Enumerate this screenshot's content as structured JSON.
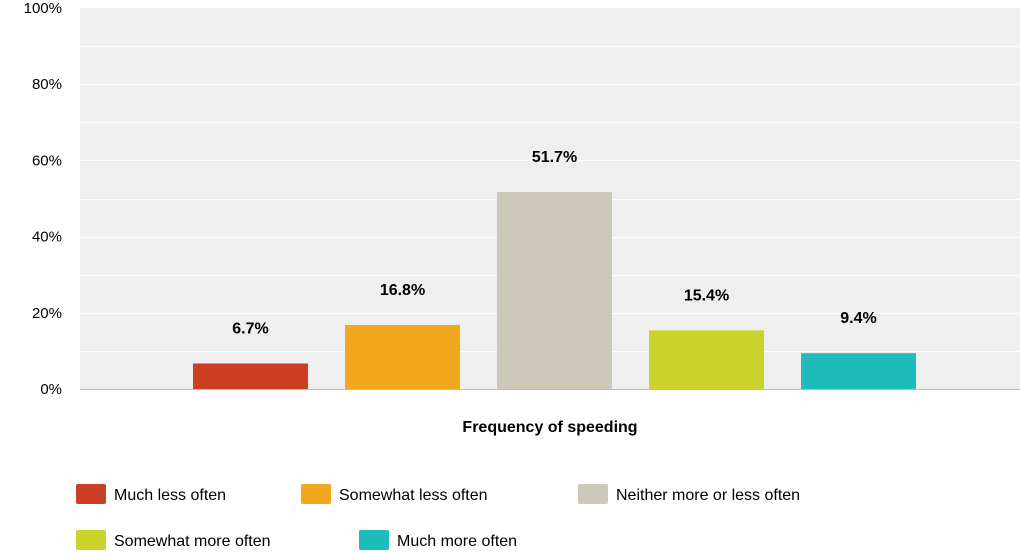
{
  "chart_data": {
    "type": "bar",
    "xlabel": "Frequency of speeding",
    "ylabel": "",
    "ylim": [
      0,
      100
    ],
    "yticks": [
      "0%",
      "20%",
      "40%",
      "60%",
      "80%",
      "100%"
    ],
    "grid": true,
    "legend_position": "bottom",
    "series": [
      {
        "name": "Much less often",
        "value": 6.7,
        "label": "6.7%",
        "color": "#cc3f23"
      },
      {
        "name": "Somewhat less often",
        "value": 16.8,
        "label": "16.8%",
        "color": "#f2a81d"
      },
      {
        "name": "Neither more or less often",
        "value": 51.7,
        "label": "51.7%",
        "color": "#ccc9bb"
      },
      {
        "name": "Somewhat more often",
        "value": 15.4,
        "label": "15.4%",
        "color": "#c9d32a"
      },
      {
        "name": "Much more often",
        "value": 9.4,
        "label": "9.4%",
        "color": "#1fbcbc"
      }
    ]
  }
}
